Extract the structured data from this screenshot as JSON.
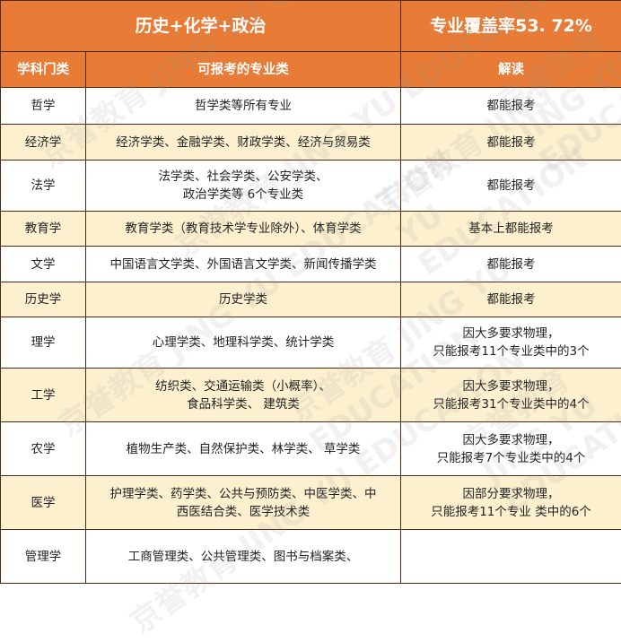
{
  "header": {
    "title": "历史+化学+政治",
    "coverage": "专业覆盖率53. 72%"
  },
  "columns": [
    "学科门类",
    "可报考的专业类",
    "解读"
  ],
  "rows": [
    {
      "category": "哲学",
      "majors": [
        "哲学类等所有专业"
      ],
      "note": [
        "都能报考"
      ]
    },
    {
      "category": "经济学",
      "majors": [
        "经济学类、金融学类、财政学类、经济与贸易类"
      ],
      "note": [
        "都能报考"
      ]
    },
    {
      "category": "法学",
      "majors": [
        "法学类、社会学类、公安学类、",
        "政治学类等 6个专业类"
      ],
      "note": [
        "都能报考"
      ]
    },
    {
      "category": "教育学",
      "majors": [
        "教育学类（教育技术学专业除外）、体育学类"
      ],
      "note": [
        "基本上都能报考"
      ]
    },
    {
      "category": "文学",
      "majors": [
        "中国语言文学类、外国语言文学类、新闻传播学类"
      ],
      "note": [
        "都能报考"
      ]
    },
    {
      "category": "历史学",
      "majors": [
        "历史学类"
      ],
      "note": [
        "都能报考"
      ]
    },
    {
      "category": "理学",
      "majors": [
        "心理学类、地理科学类、统计学类"
      ],
      "note": [
        "因大多要求物理，",
        "只能报考11个专业类中的3个"
      ]
    },
    {
      "category": "工学",
      "majors": [
        "纺织类、交通运输类（小概率）、",
        "食品科学类、 建筑类"
      ],
      "note": [
        "因大多要求物理，",
        "只能报考31个专业类中的4个"
      ]
    },
    {
      "category": "农学",
      "majors": [
        "植物生产类、自然保护类、林学类、 草学类"
      ],
      "note": [
        "因大多要求物理，",
        "只能报考7个专业类中的4个"
      ]
    },
    {
      "category": "医学",
      "majors": [
        "护理学类、药学类、公共与预防类、中医学类、中",
        "西医结合类、医学技术类"
      ],
      "note": [
        "因部分要求物理，",
        "只能报考11个专业 类中的6个"
      ]
    },
    {
      "category": "管理学",
      "majors": [
        "工商管理类、公共管理类、图书与档案类、"
      ],
      "note": [
        ""
      ]
    }
  ],
  "watermark": "京誉教育 JING YU EDUCATION",
  "colors": {
    "header": "#E87B35",
    "stripe": "#FCF0CF"
  }
}
